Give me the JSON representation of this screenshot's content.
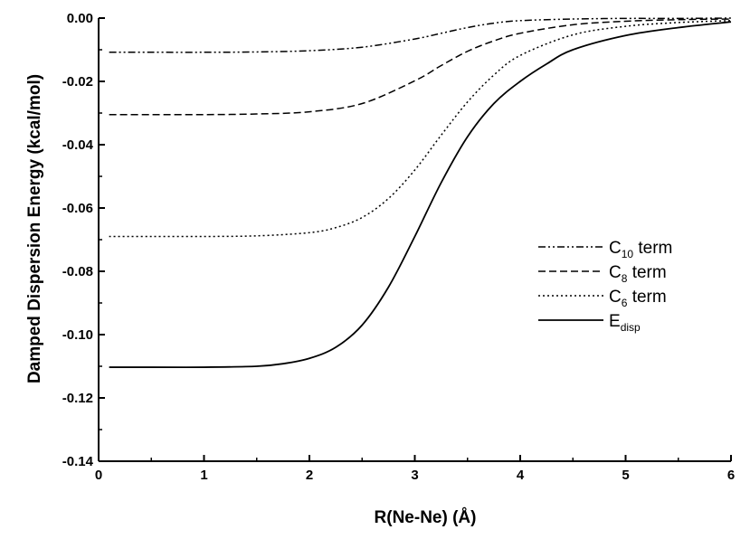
{
  "chart_data": {
    "type": "line",
    "title": "",
    "xlabel": "R(Ne-Ne)  (Å)",
    "ylabel": "Damped Dispersion Energy (kcal/mol)",
    "xlim": [
      0,
      6
    ],
    "ylim": [
      -0.14,
      0.0
    ],
    "x_ticks": [
      0,
      1,
      2,
      3,
      4,
      5,
      6
    ],
    "x_tick_labels": [
      "0",
      "1",
      "2",
      "3",
      "4",
      "5",
      "6"
    ],
    "y_ticks": [
      0.0,
      -0.02,
      -0.04,
      -0.06,
      -0.08,
      -0.1,
      -0.12,
      -0.14
    ],
    "y_tick_labels": [
      "0.00",
      "-0.02",
      "-0.04",
      "-0.06",
      "-0.08",
      "-0.10",
      "-0.12",
      "-0.14"
    ],
    "grid": false,
    "legend_position": "right",
    "series": [
      {
        "name": "C10 term",
        "label_main": "C",
        "label_sub": "10",
        "label_suffix": " term",
        "style": "dashdotdot",
        "color": "#000000",
        "x": [
          0.1,
          0.5,
          1.0,
          1.5,
          2.0,
          2.5,
          3.0,
          3.25,
          3.5,
          3.75,
          4.0,
          4.5,
          5.0,
          5.5,
          6.0
        ],
        "y": [
          -0.0108,
          -0.0108,
          -0.0108,
          -0.0107,
          -0.0103,
          -0.0092,
          -0.0066,
          -0.0048,
          -0.003,
          -0.0016,
          -0.0008,
          -0.0003,
          -0.0001,
          -0.0001,
          0.0
        ]
      },
      {
        "name": "C8 term",
        "label_main": "C",
        "label_sub": "8",
        "label_suffix": " term",
        "style": "dashed",
        "color": "#000000",
        "x": [
          0.1,
          0.5,
          1.0,
          1.5,
          2.0,
          2.5,
          3.0,
          3.25,
          3.5,
          3.75,
          4.0,
          4.5,
          5.0,
          5.5,
          6.0
        ],
        "y": [
          -0.0305,
          -0.0305,
          -0.0305,
          -0.0303,
          -0.0296,
          -0.027,
          -0.0198,
          -0.015,
          -0.0105,
          -0.0072,
          -0.0048,
          -0.0021,
          -0.001,
          -0.0005,
          -0.0003
        ]
      },
      {
        "name": "C6 term",
        "label_main": "C",
        "label_sub": "6",
        "label_suffix": " term",
        "style": "dotted",
        "color": "#000000",
        "x": [
          0.1,
          0.5,
          1.0,
          1.5,
          2.0,
          2.25,
          2.5,
          2.75,
          3.0,
          3.25,
          3.5,
          3.75,
          4.0,
          4.5,
          5.0,
          5.5,
          6.0
        ],
        "y": [
          -0.069,
          -0.069,
          -0.069,
          -0.0688,
          -0.0678,
          -0.0662,
          -0.063,
          -0.057,
          -0.048,
          -0.037,
          -0.0265,
          -0.018,
          -0.0118,
          -0.0053,
          -0.0026,
          -0.0014,
          -0.0008
        ]
      },
      {
        "name": "Edisp",
        "label_main": "E",
        "label_sub": "disp",
        "label_suffix": "",
        "style": "solid",
        "color": "#000000",
        "x": [
          0.1,
          0.5,
          1.0,
          1.5,
          1.75,
          2.0,
          2.25,
          2.5,
          2.75,
          3.0,
          3.25,
          3.5,
          3.75,
          4.0,
          4.25,
          4.5,
          5.0,
          5.5,
          6.0
        ],
        "y": [
          -0.1103,
          -0.1103,
          -0.1103,
          -0.11,
          -0.1092,
          -0.1075,
          -0.104,
          -0.097,
          -0.085,
          -0.069,
          -0.052,
          -0.0375,
          -0.027,
          -0.02,
          -0.0145,
          -0.01,
          -0.0055,
          -0.003,
          -0.0012
        ]
      }
    ]
  }
}
